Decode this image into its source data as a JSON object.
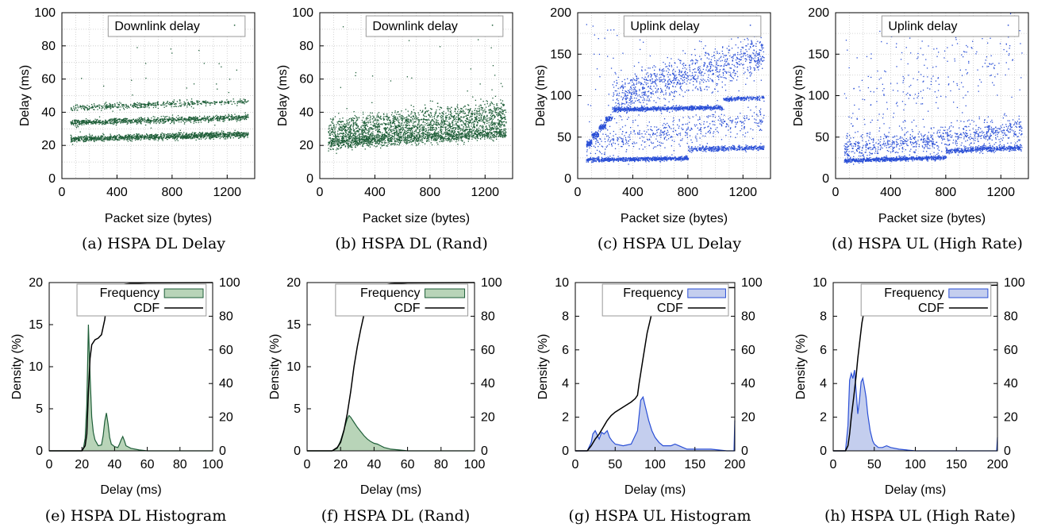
{
  "chart_data": [
    {
      "type": "scatter",
      "id": "a",
      "caption": "(a) HSPA DL Delay",
      "legend": "Downlink delay",
      "xlabel": "Packet size (bytes)",
      "ylabel": "Delay (ms)",
      "xlim": [
        0,
        1400
      ],
      "ylim": [
        0,
        100
      ],
      "xticks": [
        0,
        400,
        800,
        1200
      ],
      "yticks": [
        0,
        20,
        40,
        60,
        80,
        100
      ],
      "color": "#1e5e38",
      "grid": true,
      "legend_position": "top-right",
      "bands": [
        {
          "x": [
            60,
            1350
          ],
          "y_start": 24,
          "y_end": 27,
          "spread": 1.5,
          "density": 1.0
        },
        {
          "x": [
            60,
            1350
          ],
          "y_start": 34,
          "y_end": 37,
          "spread": 1.5,
          "density": 0.7
        },
        {
          "x": [
            60,
            1350
          ],
          "y_start": 43,
          "y_end": 47,
          "spread": 1.5,
          "density": 0.35
        }
      ]
    },
    {
      "type": "scatter",
      "id": "b",
      "caption": "(b) HSPA DL (Rand)",
      "legend": "Downlink delay",
      "xlabel": "Packet size (bytes)",
      "ylabel": "Delay (ms)",
      "xlim": [
        0,
        1400
      ],
      "ylim": [
        0,
        100
      ],
      "xticks": [
        0,
        400,
        800,
        1200
      ],
      "yticks": [
        0,
        20,
        40,
        60,
        80,
        100
      ],
      "color": "#1e5e38",
      "grid": true,
      "legend_position": "top-right",
      "bands": [
        {
          "x": [
            60,
            1350
          ],
          "y_start": 22,
          "y_end": 28,
          "spread": 3,
          "density": 1.0
        },
        {
          "x": [
            60,
            1350
          ],
          "y_start": 26,
          "y_end": 35,
          "spread": 6,
          "density": 1.0
        },
        {
          "x": [
            60,
            1350
          ],
          "y_start": 32,
          "y_end": 42,
          "spread": 5,
          "density": 0.5
        }
      ]
    },
    {
      "type": "scatter",
      "id": "c",
      "caption": "(c) HSPA UL Delay",
      "legend": "Uplink delay",
      "xlabel": "Packet size (bytes)",
      "ylabel": "Delay (ms)",
      "xlim": [
        0,
        1400
      ],
      "ylim": [
        0,
        200
      ],
      "xticks": [
        0,
        400,
        800,
        1200
      ],
      "yticks": [
        0,
        50,
        100,
        150,
        200
      ],
      "color": "#2a4fd6",
      "grid": true,
      "legend_position": "top-right",
      "bands": [
        {
          "x": [
            60,
            800
          ],
          "y_start": 23,
          "y_end": 25,
          "spread": 2,
          "density": 1.0
        },
        {
          "x": [
            800,
            1350
          ],
          "y_start": 36,
          "y_end": 38,
          "spread": 2.5,
          "density": 0.6
        },
        {
          "x": [
            60,
            100
          ],
          "y_start": 42,
          "y_end": 44,
          "spread": 3,
          "density": 0.25
        },
        {
          "x": [
            100,
            150
          ],
          "y_start": 52,
          "y_end": 54,
          "spread": 3,
          "density": 0.25
        },
        {
          "x": [
            150,
            200
          ],
          "y_start": 62,
          "y_end": 64,
          "spread": 3,
          "density": 0.25
        },
        {
          "x": [
            200,
            250
          ],
          "y_start": 72,
          "y_end": 74,
          "spread": 3,
          "density": 0.25
        },
        {
          "x": [
            250,
            1050
          ],
          "y_start": 84,
          "y_end": 86,
          "spread": 2,
          "density": 1.0
        },
        {
          "x": [
            1050,
            1350
          ],
          "y_start": 96,
          "y_end": 98,
          "spread": 2,
          "density": 0.5
        },
        {
          "x": [
            250,
            1350
          ],
          "y_start": 100,
          "y_end": 150,
          "spread": 20,
          "density": 0.9
        },
        {
          "x": [
            60,
            1350
          ],
          "y_start": 40,
          "y_end": 75,
          "spread": 15,
          "density": 0.35
        }
      ]
    },
    {
      "type": "scatter",
      "id": "d",
      "caption": "(d) HSPA UL (High Rate)",
      "legend": "Uplink delay",
      "xlabel": "Packet size (bytes)",
      "ylabel": "Delay (ms)",
      "xlim": [
        0,
        1400
      ],
      "ylim": [
        0,
        200
      ],
      "xticks": [
        0,
        400,
        800,
        1200
      ],
      "yticks": [
        0,
        50,
        100,
        150,
        200
      ],
      "color": "#2a4fd6",
      "grid": true,
      "legend_position": "top-right",
      "bands": [
        {
          "x": [
            60,
            800
          ],
          "y_start": 22,
          "y_end": 26,
          "spread": 2,
          "density": 1.0
        },
        {
          "x": [
            800,
            1350
          ],
          "y_start": 34,
          "y_end": 38,
          "spread": 3,
          "density": 0.8
        },
        {
          "x": [
            60,
            1350
          ],
          "y_start": 35,
          "y_end": 60,
          "spread": 12,
          "density": 0.6
        },
        {
          "x": [
            60,
            1350
          ],
          "y_start": 60,
          "y_end": 180,
          "spread": 40,
          "density": 0.12
        }
      ]
    },
    {
      "type": "area",
      "id": "e",
      "caption": "(e) HSPA DL Histogram",
      "legend": [
        "Frequency",
        "CDF"
      ],
      "xlabel": "Delay (ms)",
      "ylabel": "Density (%)",
      "xlim": [
        0,
        100
      ],
      "ylim": [
        0,
        20
      ],
      "y2lim": [
        0,
        100
      ],
      "xticks": [
        0,
        20,
        40,
        60,
        80,
        100
      ],
      "yticks": [
        0,
        5,
        10,
        15,
        20
      ],
      "y2ticks": [
        0,
        20,
        40,
        60,
        80,
        100
      ],
      "color": "#1e5e38",
      "fill": "#b8d4b8",
      "grid": false,
      "legend_position": "top-right",
      "frequency": {
        "x": [
          0,
          10,
          20,
          21,
          22,
          23,
          24,
          25,
          26,
          27,
          28,
          30,
          32,
          33,
          34,
          35,
          36,
          37,
          38,
          40,
          42,
          43,
          44,
          45,
          46,
          47,
          50,
          55,
          60,
          100
        ],
        "y": [
          0,
          0,
          0,
          0.4,
          1.5,
          5.5,
          15,
          9,
          4,
          2.2,
          1.3,
          0.6,
          0.7,
          1.8,
          3.5,
          4.5,
          3.2,
          1.6,
          0.8,
          0.5,
          0.4,
          0.8,
          1.3,
          1.7,
          1.2,
          0.6,
          0.3,
          0.1,
          0,
          0
        ]
      },
      "cdf": {
        "x": [
          0,
          20,
          22,
          23,
          24,
          25,
          26,
          28,
          30,
          32,
          34,
          35,
          36,
          38,
          40,
          44,
          46,
          50,
          60,
          100
        ],
        "y": [
          0,
          0,
          3,
          10,
          35,
          55,
          63,
          66,
          67,
          69,
          78,
          86,
          93,
          96,
          97,
          98,
          99,
          99.5,
          99.8,
          100
        ]
      }
    },
    {
      "type": "area",
      "id": "f",
      "caption": "(f) HSPA DL (Rand)",
      "legend": [
        "Frequency",
        "CDF"
      ],
      "xlabel": "Delay (ms)",
      "ylabel": "Density (%)",
      "xlim": [
        0,
        100
      ],
      "ylim": [
        0,
        20
      ],
      "y2lim": [
        0,
        100
      ],
      "xticks": [
        0,
        20,
        40,
        60,
        80,
        100
      ],
      "yticks": [
        0,
        5,
        10,
        15,
        20
      ],
      "y2ticks": [
        0,
        20,
        40,
        60,
        80,
        100
      ],
      "color": "#1e5e38",
      "fill": "#b8d4b8",
      "grid": false,
      "legend_position": "top-right",
      "frequency": {
        "x": [
          0,
          15,
          18,
          20,
          22,
          24,
          25,
          26,
          28,
          30,
          32,
          34,
          36,
          38,
          40,
          42,
          44,
          46,
          48,
          50,
          55,
          60,
          100
        ],
        "y": [
          0,
          0,
          0.3,
          1.2,
          2.5,
          3.8,
          4.2,
          4.0,
          3.4,
          2.8,
          2.3,
          1.8,
          1.4,
          1.1,
          0.9,
          0.8,
          0.6,
          0.4,
          0.3,
          0.2,
          0.1,
          0,
          0
        ]
      },
      "cdf": {
        "x": [
          0,
          15,
          18,
          20,
          22,
          24,
          26,
          28,
          30,
          32,
          34,
          36,
          38,
          40,
          42,
          45,
          50,
          60,
          100
        ],
        "y": [
          0,
          0,
          2,
          5,
          12,
          22,
          35,
          50,
          62,
          72,
          81,
          88,
          92,
          95,
          97,
          98.5,
          99.3,
          99.8,
          100
        ]
      }
    },
    {
      "type": "area",
      "id": "g",
      "caption": "(g) HSPA UL Histogram",
      "legend": [
        "Frequency",
        "CDF"
      ],
      "xlabel": "Delay (ms)",
      "ylabel": "Density (%)",
      "xlim": [
        0,
        200
      ],
      "ylim": [
        0,
        10
      ],
      "y2lim": [
        0,
        100
      ],
      "xticks": [
        0,
        50,
        100,
        150,
        200
      ],
      "yticks": [
        0,
        2,
        4,
        6,
        8,
        10
      ],
      "y2ticks": [
        0,
        20,
        40,
        60,
        80,
        100
      ],
      "color": "#2a4fd6",
      "fill": "#c4ceee",
      "grid": false,
      "legend_position": "top-right",
      "frequency": {
        "x": [
          0,
          15,
          20,
          22,
          25,
          28,
          30,
          33,
          36,
          40,
          43,
          46,
          50,
          60,
          70,
          78,
          82,
          85,
          88,
          92,
          96,
          100,
          105,
          110,
          120,
          125,
          130,
          135,
          140,
          150,
          170,
          190,
          199,
          200
        ],
        "y": [
          0,
          0,
          0.5,
          1.0,
          1.2,
          0.9,
          0.7,
          1.1,
          1.0,
          1.2,
          0.8,
          0.6,
          0.4,
          0.3,
          0.4,
          1.2,
          3.0,
          3.2,
          2.6,
          1.8,
          1.2,
          0.8,
          0.5,
          0.3,
          0.3,
          0.4,
          0.3,
          0.2,
          0.1,
          0.1,
          0.1,
          0,
          0,
          1.8
        ]
      },
      "cdf": {
        "x": [
          0,
          15,
          20,
          25,
          30,
          35,
          40,
          45,
          50,
          60,
          70,
          75,
          78,
          80,
          85,
          90,
          95,
          100,
          105,
          110,
          120,
          130,
          150,
          180,
          200
        ],
        "y": [
          0,
          0,
          3,
          7,
          10,
          14,
          18,
          21,
          23,
          26,
          29,
          31,
          33,
          40,
          55,
          70,
          80,
          86,
          89,
          91,
          93,
          95,
          96,
          97,
          97
        ]
      }
    },
    {
      "type": "area",
      "id": "h",
      "caption": "(h) HSPA UL (High Rate)",
      "legend": [
        "Frequency",
        "CDF"
      ],
      "xlabel": "Delay (ms)",
      "ylabel": "Density (%)",
      "xlim": [
        0,
        200
      ],
      "ylim": [
        0,
        10
      ],
      "y2lim": [
        0,
        100
      ],
      "xticks": [
        0,
        50,
        100,
        150,
        200
      ],
      "yticks": [
        0,
        2,
        4,
        6,
        8,
        10
      ],
      "y2ticks": [
        0,
        20,
        40,
        60,
        80,
        100
      ],
      "color": "#2a4fd6",
      "fill": "#c4ceee",
      "grid": false,
      "legend_position": "top-right",
      "frequency": {
        "x": [
          0,
          15,
          18,
          20,
          22,
          24,
          26,
          28,
          30,
          32,
          34,
          36,
          38,
          40,
          42,
          45,
          48,
          50,
          55,
          60,
          65,
          70,
          80,
          100,
          150,
          199,
          200
        ],
        "y": [
          0,
          0,
          1.5,
          4.2,
          4.6,
          4.3,
          4.8,
          3.5,
          2.2,
          3.0,
          4.1,
          4.3,
          3.8,
          3.2,
          2.2,
          1.2,
          0.6,
          0.4,
          0.2,
          0.2,
          0.3,
          0.2,
          0.1,
          0,
          0,
          0,
          0.8
        ]
      },
      "cdf": {
        "x": [
          0,
          15,
          18,
          20,
          22,
          25,
          28,
          30,
          33,
          35,
          38,
          40,
          42,
          45,
          50,
          60,
          80,
          100,
          150,
          200
        ],
        "y": [
          0,
          0,
          3,
          10,
          20,
          32,
          45,
          55,
          68,
          76,
          84,
          88,
          90,
          91.5,
          93,
          95,
          96.5,
          97,
          98,
          98.5
        ]
      }
    }
  ]
}
